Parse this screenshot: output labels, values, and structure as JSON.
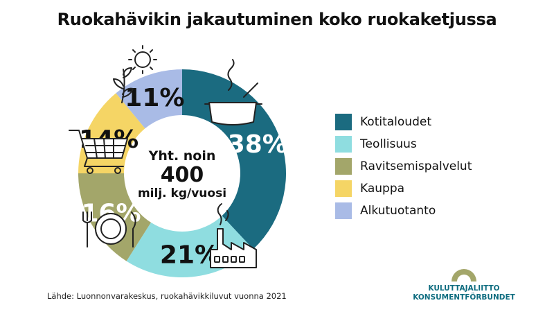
{
  "title": "Ruokahävikin jakautuminen koko ruokaketjussa",
  "chart_data": {
    "type": "pie",
    "variant": "donut",
    "categories": [
      "Kotitaloudet",
      "Teollisuus",
      "Ravitsemispalvelut",
      "Kauppa",
      "Alkutuotanto"
    ],
    "values": [
      38,
      21,
      16,
      14,
      11
    ],
    "value_labels": [
      "38%",
      "21%",
      "16%",
      "14%",
      "11%"
    ],
    "colors": [
      "#1b6b80",
      "#8fdde0",
      "#a3a66a",
      "#f5d565",
      "#a9bbe6"
    ],
    "label_colors": [
      "#ffffff",
      "#111111",
      "#ffffff",
      "#111111",
      "#111111"
    ],
    "legend_position": "right",
    "center_text": {
      "line1": "Yht. noin",
      "line2": "400",
      "line3": "milj. kg/vuosi"
    },
    "title": "Ruokahävikin jakautuminen koko ruokaketjussa"
  },
  "icons": [
    "cooking-pot-icon",
    "factory-icon",
    "plate-cutlery-icon",
    "shopping-cart-icon",
    "sun-plant-icon"
  ],
  "source": "Lähde: Luonnonvarakeskus, ruokahävikkiluvut vuonna 2021",
  "logo": {
    "line1": "KULUTTAJALIITTO",
    "line2": "KONSUMENTFÖRBUNDET",
    "color": "#0f6d80",
    "accent": "#a3a66a"
  }
}
